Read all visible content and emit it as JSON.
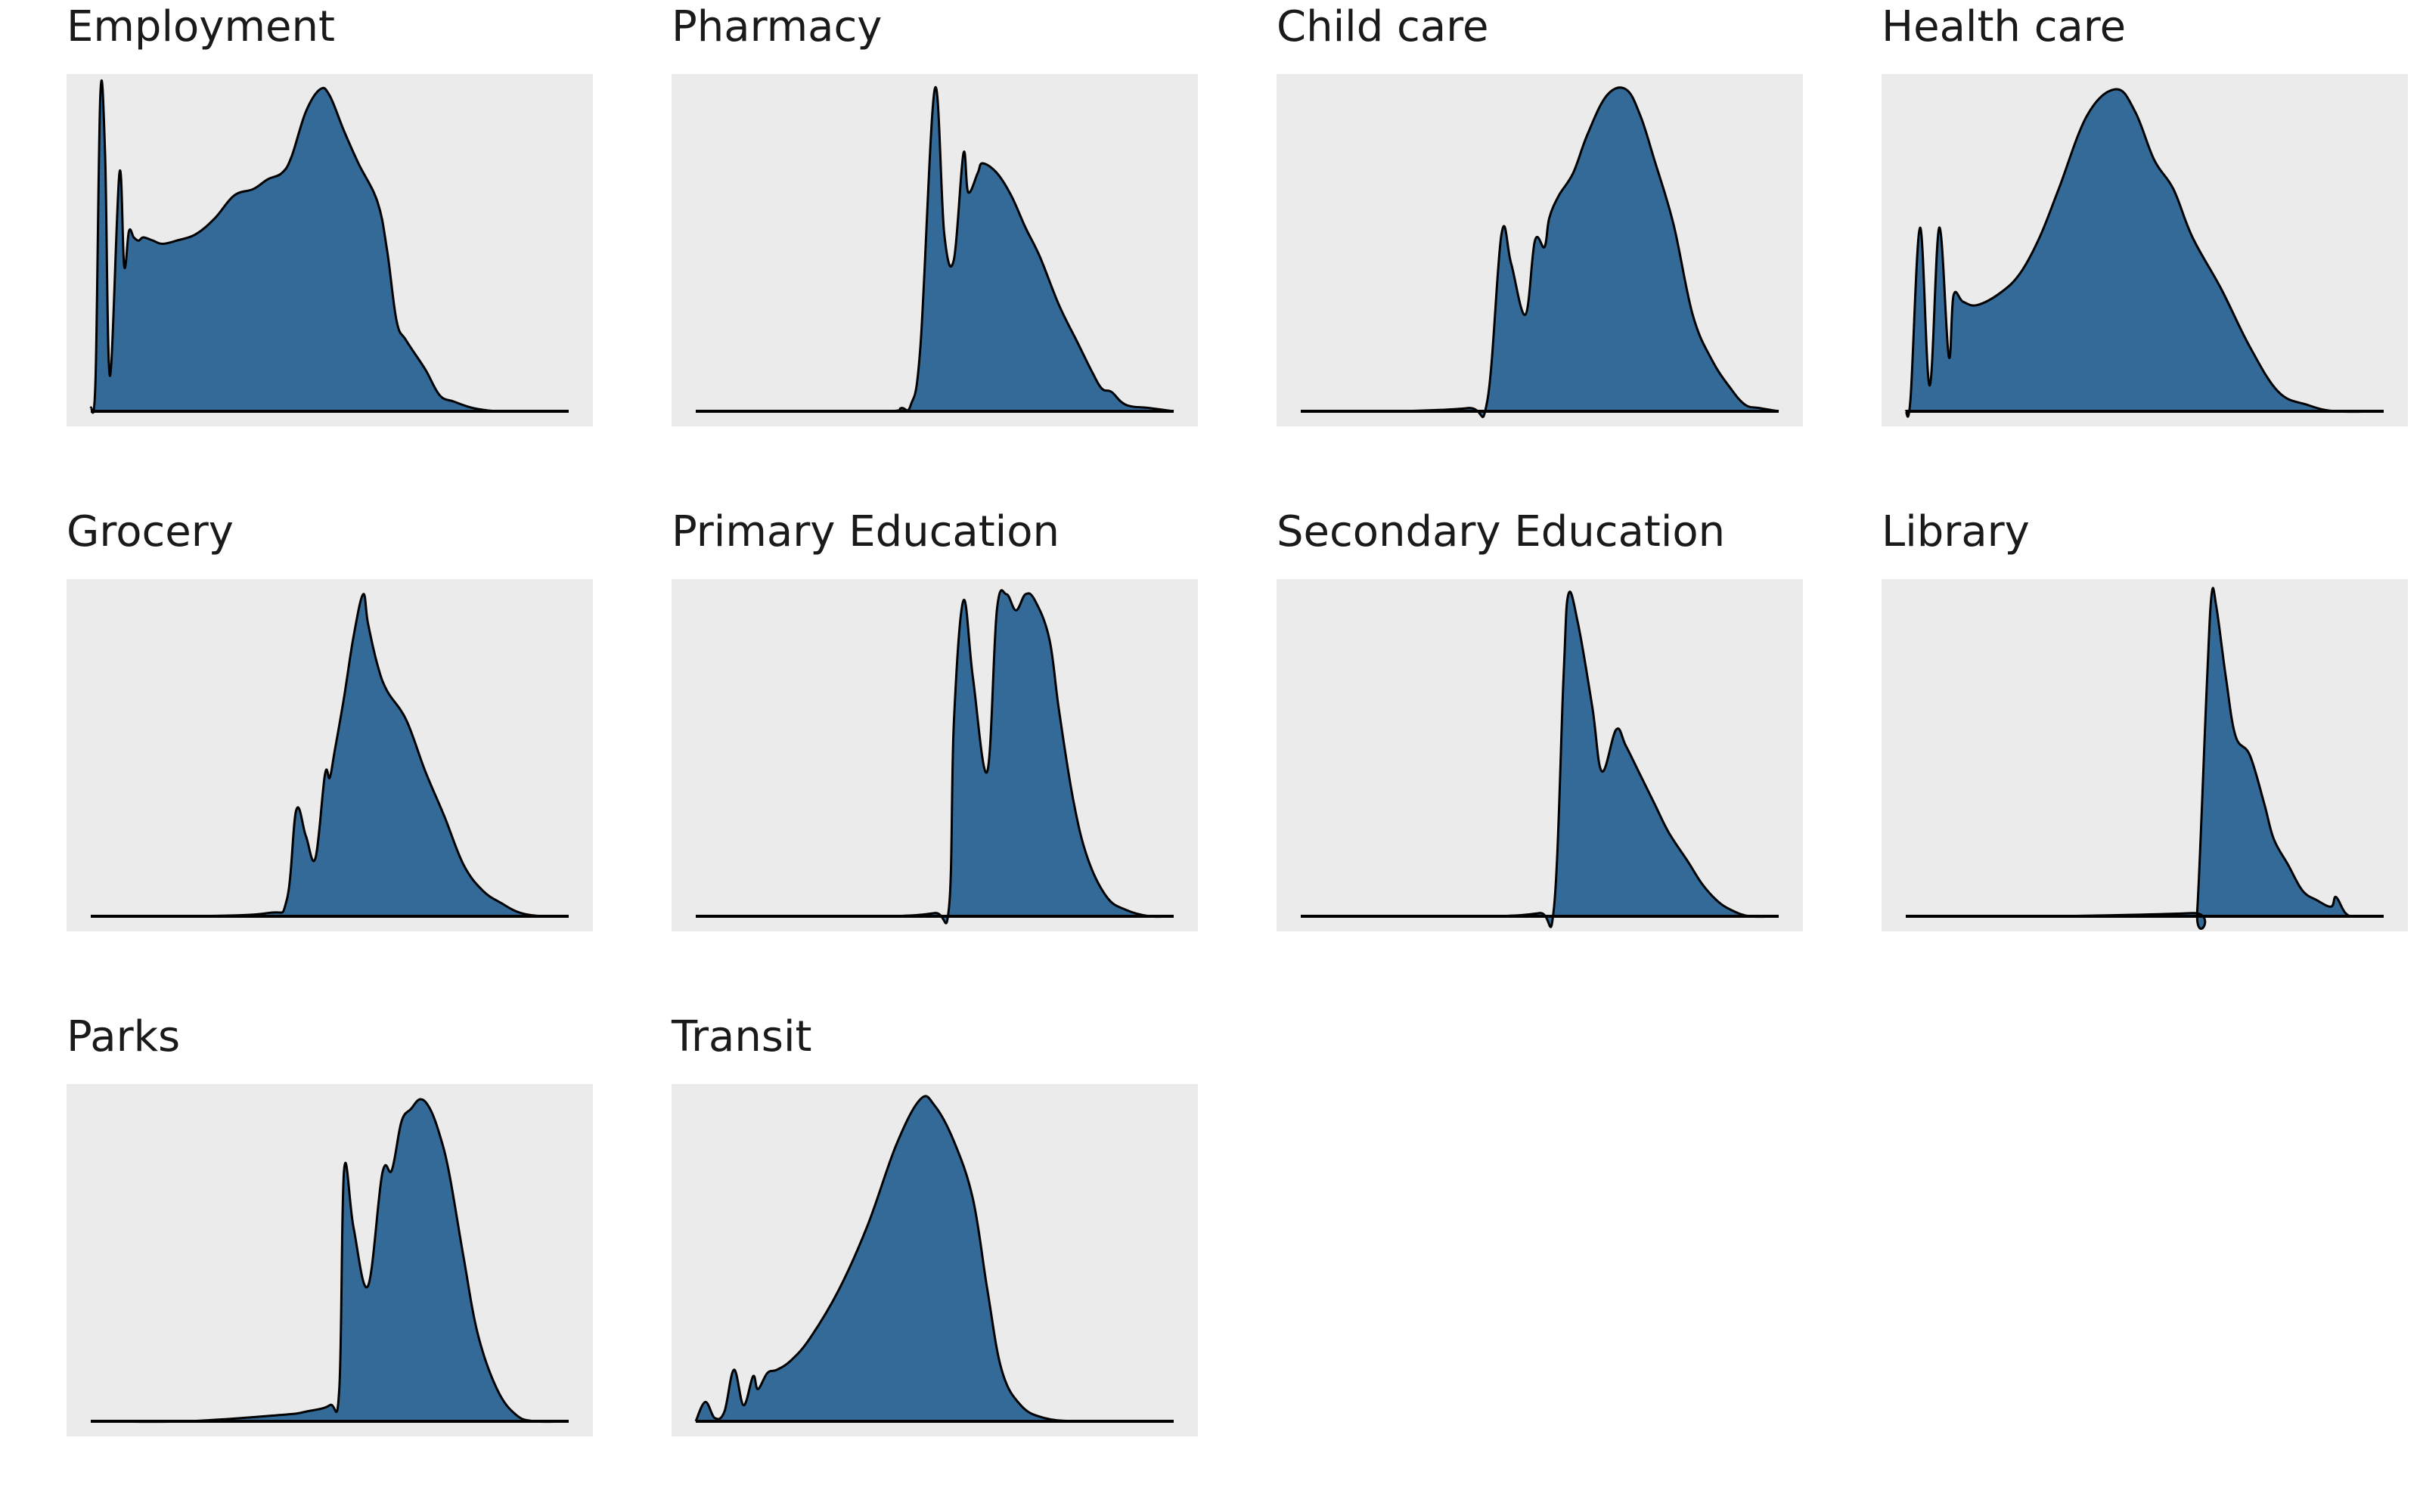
{
  "chart_data": [
    {
      "type": "area",
      "title": "Employment",
      "xlim": [
        0,
        1
      ],
      "ylim": [
        0,
        1
      ],
      "x": [
        0,
        0.01,
        0.02,
        0.03,
        0.04,
        0.06,
        0.07,
        0.08,
        0.09,
        0.1,
        0.11,
        0.13,
        0.15,
        0.18,
        0.22,
        0.26,
        0.3,
        0.34,
        0.37,
        0.4,
        0.42,
        0.45,
        0.48,
        0.5,
        0.53,
        0.56,
        0.6,
        0.62,
        0.64,
        0.66,
        0.7,
        0.73,
        0.76,
        0.8,
        0.85,
        0.9,
        1
      ],
      "y": [
        0.01,
        0.1,
        0.98,
        0.8,
        0.11,
        0.74,
        0.45,
        0.56,
        0.54,
        0.53,
        0.54,
        0.53,
        0.52,
        0.53,
        0.55,
        0.6,
        0.67,
        0.69,
        0.72,
        0.74,
        0.79,
        0.93,
        1.0,
        0.98,
        0.87,
        0.77,
        0.65,
        0.5,
        0.28,
        0.22,
        0.13,
        0.05,
        0.03,
        0.01,
        0.0,
        0.0,
        0.0
      ]
    },
    {
      "type": "area",
      "title": "Pharmacy",
      "xlim": [
        0,
        1
      ],
      "ylim": [
        0,
        1
      ],
      "x": [
        0,
        0.2,
        0.4,
        0.43,
        0.45,
        0.47,
        0.5,
        0.52,
        0.54,
        0.56,
        0.57,
        0.59,
        0.6,
        0.63,
        0.66,
        0.69,
        0.72,
        0.76,
        0.8,
        0.83,
        0.85,
        0.87,
        0.9,
        0.95,
        1
      ],
      "y": [
        0,
        0,
        0,
        0.01,
        0.02,
        0.2,
        1.0,
        0.55,
        0.47,
        0.8,
        0.68,
        0.74,
        0.77,
        0.74,
        0.67,
        0.57,
        0.48,
        0.33,
        0.21,
        0.12,
        0.07,
        0.06,
        0.02,
        0.01,
        0
      ],
      "ylim_note": ""
    },
    {
      "type": "area",
      "title": "Child care",
      "xlim": [
        0,
        1
      ],
      "ylim": [
        0,
        1
      ],
      "x": [
        0,
        0.2,
        0.35,
        0.39,
        0.42,
        0.44,
        0.47,
        0.49,
        0.51,
        0.52,
        0.54,
        0.57,
        0.6,
        0.64,
        0.68,
        0.71,
        0.74,
        0.78,
        0.82,
        0.86,
        0.9,
        0.93,
        0.96,
        1
      ],
      "y": [
        0,
        0,
        0.01,
        0.03,
        0.55,
        0.46,
        0.3,
        0.53,
        0.51,
        0.6,
        0.67,
        0.74,
        0.86,
        0.98,
        1.0,
        0.92,
        0.78,
        0.58,
        0.3,
        0.16,
        0.07,
        0.02,
        0.01,
        0
      ],
      "ylim_note": ""
    },
    {
      "type": "area",
      "title": "Health care",
      "xlim": [
        0,
        1
      ],
      "ylim": [
        0,
        1
      ],
      "x": [
        0,
        0.01,
        0.03,
        0.05,
        0.07,
        0.09,
        0.1,
        0.12,
        0.15,
        0.2,
        0.24,
        0.28,
        0.32,
        0.38,
        0.44,
        0.48,
        0.52,
        0.56,
        0.6,
        0.66,
        0.72,
        0.78,
        0.84,
        0.9,
        1
      ],
      "y": [
        0,
        0.04,
        0.57,
        0.08,
        0.57,
        0.17,
        0.36,
        0.34,
        0.33,
        0.37,
        0.43,
        0.54,
        0.69,
        0.92,
        1.0,
        0.93,
        0.78,
        0.69,
        0.54,
        0.38,
        0.2,
        0.06,
        0.02,
        0,
        0
      ],
      "ylim_note": ""
    },
    {
      "type": "area",
      "title": "Grocery",
      "xlim": [
        0,
        1
      ],
      "ylim": [
        0,
        1
      ],
      "x": [
        0,
        0.2,
        0.37,
        0.41,
        0.43,
        0.45,
        0.47,
        0.49,
        0.5,
        0.51,
        0.53,
        0.55,
        0.57,
        0.58,
        0.6,
        0.62,
        0.66,
        0.7,
        0.74,
        0.78,
        0.82,
        0.86,
        0.9,
        0.95,
        1
      ],
      "y": [
        0,
        0,
        0.01,
        0.05,
        0.33,
        0.25,
        0.18,
        0.44,
        0.43,
        0.51,
        0.68,
        0.87,
        1.0,
        0.91,
        0.78,
        0.7,
        0.61,
        0.45,
        0.31,
        0.16,
        0.08,
        0.04,
        0.01,
        0,
        0
      ],
      "ylim_note": ""
    },
    {
      "type": "area",
      "title": "Primary Education",
      "xlim": [
        0,
        1
      ],
      "ylim": [
        0,
        1
      ],
      "x": [
        0,
        0.2,
        0.4,
        0.5,
        0.53,
        0.54,
        0.56,
        0.58,
        0.61,
        0.63,
        0.65,
        0.67,
        0.69,
        0.71,
        0.74,
        0.76,
        0.79,
        0.82,
        0.86,
        0.9,
        0.95,
        1
      ],
      "y": [
        0,
        0,
        0,
        0.01,
        0.03,
        0.6,
        0.98,
        0.74,
        0.45,
        0.95,
        1.0,
        0.95,
        1.0,
        0.98,
        0.86,
        0.64,
        0.36,
        0.18,
        0.06,
        0.02,
        0,
        0
      ],
      "ylim_note": ""
    },
    {
      "type": "area",
      "title": "Secondary Education",
      "xlim": [
        0,
        1
      ],
      "ylim": [
        0,
        1
      ],
      "x": [
        0,
        0.2,
        0.4,
        0.5,
        0.53,
        0.55,
        0.56,
        0.58,
        0.61,
        0.63,
        0.66,
        0.68,
        0.71,
        0.74,
        0.77,
        0.81,
        0.84,
        0.87,
        0.9,
        0.94,
        1
      ],
      "y": [
        0,
        0,
        0,
        0.01,
        0.03,
        0.75,
        1.0,
        0.91,
        0.65,
        0.45,
        0.58,
        0.53,
        0.44,
        0.35,
        0.26,
        0.17,
        0.1,
        0.05,
        0.02,
        0,
        0
      ],
      "ylim_note": ""
    },
    {
      "type": "area",
      "title": "Library",
      "xlim": [
        0,
        1
      ],
      "ylim": [
        0,
        1
      ],
      "x": [
        0,
        0.3,
        0.6,
        0.61,
        0.63,
        0.64,
        0.65,
        0.67,
        0.69,
        0.72,
        0.75,
        0.77,
        0.8,
        0.83,
        0.86,
        0.89,
        0.9,
        0.92,
        0.94,
        1
      ],
      "y": [
        0,
        0,
        0.01,
        0.02,
        0.72,
        1.0,
        0.96,
        0.74,
        0.56,
        0.5,
        0.35,
        0.24,
        0.16,
        0.08,
        0.05,
        0.03,
        0.06,
        0.01,
        0,
        0
      ],
      "ylim_note": ""
    },
    {
      "type": "area",
      "title": "Parks",
      "xlim": [
        0,
        1
      ],
      "ylim": [
        0,
        1
      ],
      "x": [
        0,
        0.2,
        0.4,
        0.45,
        0.5,
        0.52,
        0.53,
        0.55,
        0.58,
        0.61,
        0.63,
        0.65,
        0.67,
        0.69,
        0.71,
        0.73,
        0.75,
        0.78,
        0.81,
        0.85,
        0.89,
        0.93,
        1
      ],
      "y": [
        0,
        0,
        0.02,
        0.03,
        0.05,
        0.1,
        0.78,
        0.6,
        0.42,
        0.77,
        0.78,
        0.93,
        0.97,
        1.0,
        0.97,
        0.89,
        0.77,
        0.51,
        0.27,
        0.1,
        0.02,
        0,
        0
      ],
      "ylim_note": ""
    },
    {
      "type": "area",
      "title": "Transit",
      "xlim": [
        0,
        1
      ],
      "ylim": [
        0,
        1
      ],
      "x": [
        0,
        0.02,
        0.04,
        0.06,
        0.08,
        0.1,
        0.12,
        0.13,
        0.15,
        0.17,
        0.2,
        0.24,
        0.3,
        0.36,
        0.42,
        0.47,
        0.5,
        0.54,
        0.58,
        0.61,
        0.64,
        0.68,
        0.73,
        0.8,
        0.9,
        1
      ],
      "y": [
        0,
        0.06,
        0.01,
        0.03,
        0.16,
        0.05,
        0.14,
        0.1,
        0.15,
        0.16,
        0.19,
        0.26,
        0.41,
        0.61,
        0.86,
        1.0,
        0.98,
        0.87,
        0.69,
        0.41,
        0.16,
        0.05,
        0.01,
        0,
        0,
        0
      ],
      "ylim_note": ""
    }
  ],
  "colors": {
    "fill": "#336a98",
    "line": "#000000",
    "panel": "#ebebeb"
  }
}
